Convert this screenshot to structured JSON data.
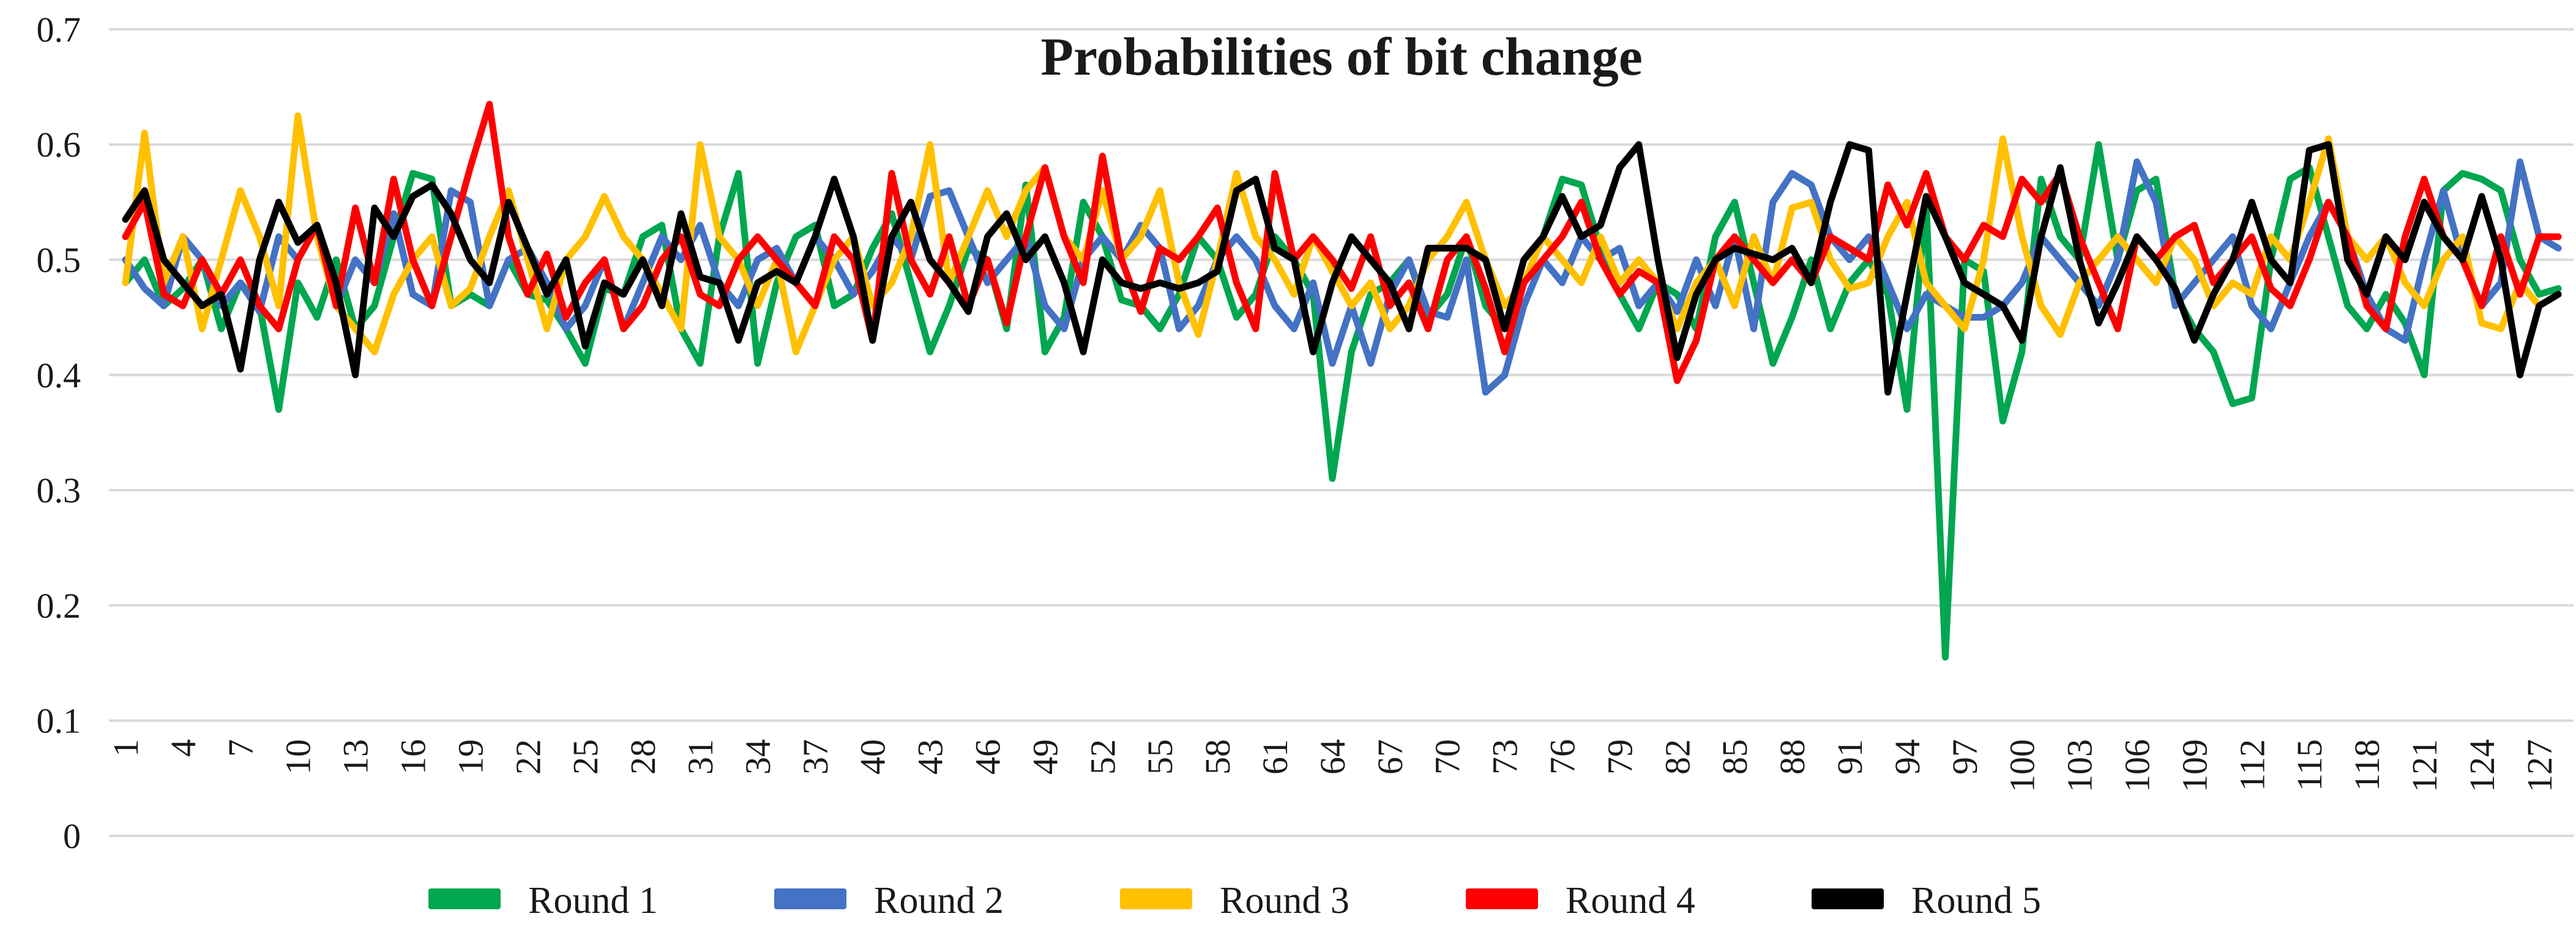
{
  "chart_data": {
    "type": "line",
    "title": "Probabilities of bit change",
    "xlabel": "",
    "ylabel": "",
    "ylim": [
      0,
      0.7
    ],
    "y_ticks": [
      0,
      0.1,
      0.2,
      0.3,
      0.4,
      0.5,
      0.6,
      0.7
    ],
    "y_tick_labels": [
      "0",
      "0.1",
      "0.2",
      "0.3",
      "0.4",
      "0.5",
      "0.6",
      "0.7"
    ],
    "x_range": [
      1,
      128
    ],
    "x_tick_labels": [
      "1",
      "4",
      "7",
      "10",
      "13",
      "16",
      "19",
      "22",
      "25",
      "28",
      "31",
      "34",
      "37",
      "40",
      "43",
      "46",
      "49",
      "52",
      "55",
      "58",
      "61",
      "64",
      "67",
      "70",
      "73",
      "76",
      "79",
      "82",
      "85",
      "88",
      "91",
      "94",
      "97",
      "100",
      "103",
      "106",
      "109",
      "112",
      "115",
      "118",
      "121",
      "124",
      "127"
    ],
    "grid": true,
    "gridline_color": "#D9D9D9",
    "legend_position": "bottom",
    "series": [
      {
        "name": "Round 1",
        "color": "#00A650",
        "values": [
          0.48,
          0.5,
          0.46,
          0.475,
          0.5,
          0.44,
          0.48,
          0.46,
          0.37,
          0.48,
          0.45,
          0.5,
          0.44,
          0.46,
          0.52,
          0.575,
          0.57,
          0.46,
          0.47,
          0.46,
          0.5,
          0.47,
          0.465,
          0.44,
          0.41,
          0.475,
          0.47,
          0.52,
          0.53,
          0.44,
          0.41,
          0.52,
          0.575,
          0.41,
          0.48,
          0.52,
          0.53,
          0.46,
          0.47,
          0.51,
          0.54,
          0.48,
          0.42,
          0.46,
          0.51,
          0.5,
          0.44,
          0.565,
          0.42,
          0.45,
          0.55,
          0.52,
          0.465,
          0.46,
          0.44,
          0.47,
          0.52,
          0.5,
          0.45,
          0.47,
          0.52,
          0.5,
          0.47,
          0.31,
          0.42,
          0.47,
          0.48,
          0.5,
          0.45,
          0.47,
          0.52,
          0.46,
          0.44,
          0.48,
          0.52,
          0.57,
          0.565,
          0.51,
          0.47,
          0.44,
          0.48,
          0.47,
          0.44,
          0.52,
          0.55,
          0.48,
          0.41,
          0.45,
          0.5,
          0.44,
          0.48,
          0.5,
          0.47,
          0.37,
          0.55,
          0.155,
          0.5,
          0.49,
          0.36,
          0.42,
          0.57,
          0.52,
          0.5,
          0.6,
          0.5,
          0.56,
          0.57,
          0.47,
          0.44,
          0.42,
          0.375,
          0.38,
          0.5,
          0.57,
          0.58,
          0.52,
          0.46,
          0.44,
          0.47,
          0.445,
          0.4,
          0.56,
          0.575,
          0.57,
          0.56,
          0.5,
          0.47,
          0.475
        ]
      },
      {
        "name": "Round 2",
        "color": "#4472C4",
        "values": [
          0.5,
          0.475,
          0.46,
          0.52,
          0.5,
          0.46,
          0.48,
          0.455,
          0.52,
          0.5,
          0.53,
          0.46,
          0.5,
          0.48,
          0.54,
          0.47,
          0.46,
          0.56,
          0.55,
          0.46,
          0.5,
          0.51,
          0.48,
          0.44,
          0.46,
          0.5,
          0.44,
          0.48,
          0.52,
          0.5,
          0.53,
          0.48,
          0.46,
          0.5,
          0.51,
          0.48,
          0.52,
          0.5,
          0.47,
          0.49,
          0.52,
          0.5,
          0.555,
          0.56,
          0.52,
          0.48,
          0.5,
          0.52,
          0.46,
          0.44,
          0.5,
          0.52,
          0.5,
          0.53,
          0.51,
          0.44,
          0.46,
          0.5,
          0.52,
          0.5,
          0.46,
          0.44,
          0.48,
          0.41,
          0.46,
          0.41,
          0.47,
          0.5,
          0.455,
          0.45,
          0.5,
          0.385,
          0.4,
          0.46,
          0.5,
          0.48,
          0.52,
          0.5,
          0.51,
          0.46,
          0.48,
          0.455,
          0.5,
          0.46,
          0.52,
          0.44,
          0.55,
          0.575,
          0.565,
          0.52,
          0.5,
          0.52,
          0.48,
          0.44,
          0.47,
          0.46,
          0.45,
          0.45,
          0.46,
          0.48,
          0.52,
          0.5,
          0.48,
          0.46,
          0.5,
          0.585,
          0.55,
          0.46,
          0.48,
          0.5,
          0.52,
          0.46,
          0.44,
          0.48,
          0.52,
          0.55,
          0.52,
          0.47,
          0.44,
          0.43,
          0.5,
          0.56,
          0.5,
          0.46,
          0.48,
          0.585,
          0.52,
          0.51
        ]
      },
      {
        "name": "Round 3",
        "color": "#FFC000",
        "values": [
          0.48,
          0.61,
          0.48,
          0.52,
          0.44,
          0.5,
          0.56,
          0.52,
          0.46,
          0.625,
          0.52,
          0.46,
          0.44,
          0.42,
          0.47,
          0.5,
          0.52,
          0.46,
          0.475,
          0.52,
          0.56,
          0.5,
          0.44,
          0.5,
          0.52,
          0.555,
          0.52,
          0.5,
          0.47,
          0.44,
          0.6,
          0.52,
          0.5,
          0.46,
          0.5,
          0.42,
          0.46,
          0.5,
          0.52,
          0.46,
          0.48,
          0.52,
          0.6,
          0.48,
          0.52,
          0.56,
          0.52,
          0.56,
          0.58,
          0.52,
          0.5,
          0.56,
          0.5,
          0.52,
          0.56,
          0.48,
          0.435,
          0.5,
          0.575,
          0.52,
          0.5,
          0.47,
          0.52,
          0.49,
          0.46,
          0.48,
          0.44,
          0.46,
          0.5,
          0.52,
          0.55,
          0.5,
          0.46,
          0.48,
          0.52,
          0.5,
          0.48,
          0.52,
          0.48,
          0.5,
          0.48,
          0.44,
          0.48,
          0.5,
          0.46,
          0.52,
          0.48,
          0.545,
          0.55,
          0.5,
          0.475,
          0.48,
          0.52,
          0.55,
          0.48,
          0.46,
          0.44,
          0.5,
          0.605,
          0.52,
          0.46,
          0.435,
          0.48,
          0.5,
          0.52,
          0.5,
          0.48,
          0.52,
          0.5,
          0.46,
          0.48,
          0.47,
          0.52,
          0.5,
          0.55,
          0.605,
          0.52,
          0.5,
          0.52,
          0.48,
          0.46,
          0.5,
          0.52,
          0.445,
          0.44,
          0.48,
          0.46,
          0.47
        ]
      },
      {
        "name": "Round 4",
        "color": "#FF0000",
        "values": [
          0.52,
          0.55,
          0.47,
          0.46,
          0.5,
          0.47,
          0.5,
          0.46,
          0.44,
          0.5,
          0.53,
          0.46,
          0.545,
          0.48,
          0.57,
          0.5,
          0.46,
          0.52,
          0.58,
          0.635,
          0.52,
          0.47,
          0.505,
          0.45,
          0.48,
          0.5,
          0.44,
          0.46,
          0.5,
          0.52,
          0.47,
          0.46,
          0.5,
          0.52,
          0.5,
          0.48,
          0.46,
          0.52,
          0.5,
          0.43,
          0.575,
          0.5,
          0.47,
          0.52,
          0.46,
          0.5,
          0.445,
          0.52,
          0.58,
          0.52,
          0.48,
          0.59,
          0.5,
          0.455,
          0.51,
          0.5,
          0.52,
          0.545,
          0.48,
          0.44,
          0.575,
          0.5,
          0.52,
          0.5,
          0.475,
          0.52,
          0.46,
          0.48,
          0.44,
          0.5,
          0.52,
          0.475,
          0.42,
          0.48,
          0.5,
          0.52,
          0.55,
          0.5,
          0.47,
          0.49,
          0.48,
          0.395,
          0.43,
          0.5,
          0.52,
          0.5,
          0.48,
          0.5,
          0.48,
          0.52,
          0.51,
          0.5,
          0.565,
          0.53,
          0.575,
          0.52,
          0.5,
          0.53,
          0.52,
          0.57,
          0.55,
          0.575,
          0.52,
          0.48,
          0.44,
          0.52,
          0.5,
          0.52,
          0.53,
          0.48,
          0.5,
          0.52,
          0.475,
          0.46,
          0.5,
          0.55,
          0.52,
          0.46,
          0.44,
          0.52,
          0.57,
          0.52,
          0.5,
          0.46,
          0.52,
          0.47,
          0.52,
          0.52
        ]
      },
      {
        "name": "Round 5",
        "color": "#000000",
        "values": [
          0.535,
          0.56,
          0.5,
          0.48,
          0.46,
          0.47,
          0.405,
          0.5,
          0.55,
          0.515,
          0.53,
          0.48,
          0.4,
          0.545,
          0.52,
          0.555,
          0.565,
          0.54,
          0.5,
          0.48,
          0.55,
          0.51,
          0.47,
          0.5,
          0.425,
          0.48,
          0.47,
          0.5,
          0.46,
          0.54,
          0.485,
          0.48,
          0.43,
          0.48,
          0.49,
          0.48,
          0.52,
          0.57,
          0.52,
          0.43,
          0.52,
          0.55,
          0.5,
          0.48,
          0.455,
          0.52,
          0.54,
          0.5,
          0.52,
          0.48,
          0.42,
          0.5,
          0.48,
          0.475,
          0.48,
          0.475,
          0.48,
          0.49,
          0.56,
          0.57,
          0.51,
          0.5,
          0.42,
          0.48,
          0.52,
          0.5,
          0.48,
          0.44,
          0.51,
          0.51,
          0.51,
          0.5,
          0.44,
          0.5,
          0.52,
          0.555,
          0.52,
          0.53,
          0.58,
          0.6,
          0.5,
          0.415,
          0.47,
          0.5,
          0.51,
          0.505,
          0.5,
          0.51,
          0.48,
          0.55,
          0.6,
          0.595,
          0.385,
          0.47,
          0.555,
          0.52,
          0.48,
          0.47,
          0.46,
          0.43,
          0.52,
          0.58,
          0.5,
          0.445,
          0.48,
          0.52,
          0.5,
          0.475,
          0.43,
          0.47,
          0.5,
          0.55,
          0.5,
          0.48,
          0.595,
          0.6,
          0.5,
          0.47,
          0.52,
          0.5,
          0.55,
          0.52,
          0.5,
          0.555,
          0.5,
          0.4,
          0.46,
          0.47
        ]
      }
    ]
  },
  "legend": {
    "items": [
      {
        "label": "Round 1",
        "color": "#00A650"
      },
      {
        "label": "Round 2",
        "color": "#4472C4"
      },
      {
        "label": "Round 3",
        "color": "#FFC000"
      },
      {
        "label": "Round 4",
        "color": "#FF0000"
      },
      {
        "label": "Round 5",
        "color": "#000000"
      }
    ]
  }
}
